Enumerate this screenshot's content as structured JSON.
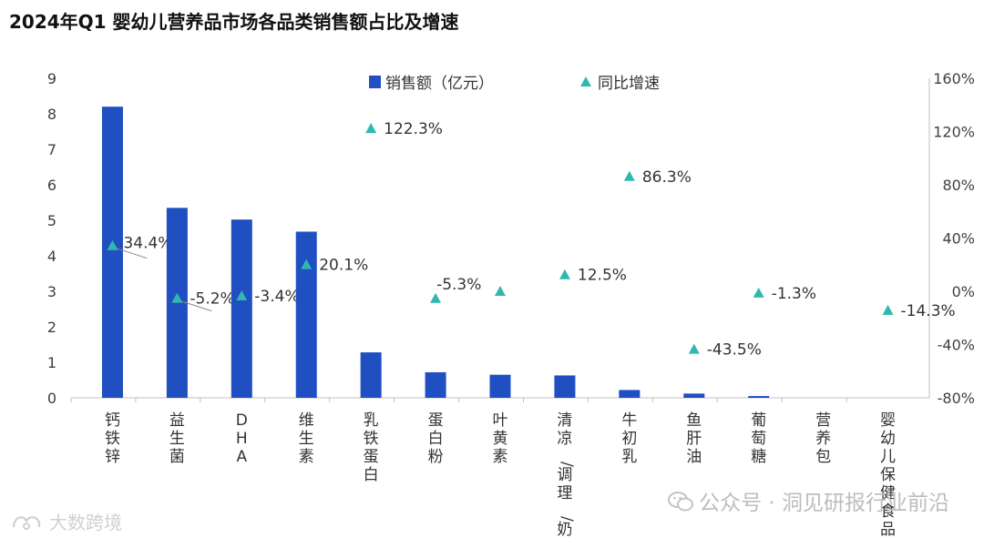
{
  "chart_data": {
    "type": "bar",
    "title": "2024年Q1 婴幼儿营养品市场各品类销售额占比及增速",
    "categories": [
      "钙铁锌",
      "益生菌",
      "DHA",
      "维生素",
      "乳铁蛋白",
      "蛋白粉",
      "叶黄素",
      "清凉/调理/奶伴",
      "牛初乳",
      "鱼肝油",
      "葡萄糖",
      "营养包",
      "婴幼儿保健食品"
    ],
    "series": [
      {
        "name": "销售额（亿元）",
        "type": "bar",
        "axis": "left",
        "values": [
          8.2,
          5.35,
          5.02,
          4.68,
          1.28,
          0.72,
          0.65,
          0.63,
          0.22,
          0.12,
          0.05,
          0,
          0
        ]
      },
      {
        "name": "同比增速",
        "type": "marker",
        "axis": "right",
        "values": [
          34.4,
          -5.2,
          -3.4,
          20.1,
          122.3,
          -5.3,
          0,
          12.5,
          86.3,
          -43.5,
          -1.3,
          null,
          -14.3
        ],
        "labels": [
          "34.4%",
          "-5.2%",
          "-3.4%",
          "20.1%",
          "122.3%",
          "-5.3%",
          "",
          "12.5%",
          "86.3%",
          "-43.5%",
          "-1.3%",
          "",
          "-14.3%"
        ]
      }
    ],
    "y_left": {
      "min": 0,
      "max": 9,
      "ticks": [
        "0",
        "1",
        "2",
        "3",
        "4",
        "5",
        "6",
        "7",
        "8",
        "9"
      ]
    },
    "y_right": {
      "min": -80,
      "max": 160,
      "ticks": [
        "-80%",
        "-40%",
        "0%",
        "40%",
        "80%",
        "120%",
        "160%"
      ]
    },
    "legend": [
      "销售额（亿元）",
      "同比增速"
    ],
    "colors": {
      "bar": "#1f4fc0",
      "marker": "#2fb8b0",
      "axis": "#bfbfbf",
      "text": "#404040"
    }
  },
  "watermarks": {
    "right": "公众号 · 洞见研报行业前沿",
    "left": "大数跨境"
  }
}
